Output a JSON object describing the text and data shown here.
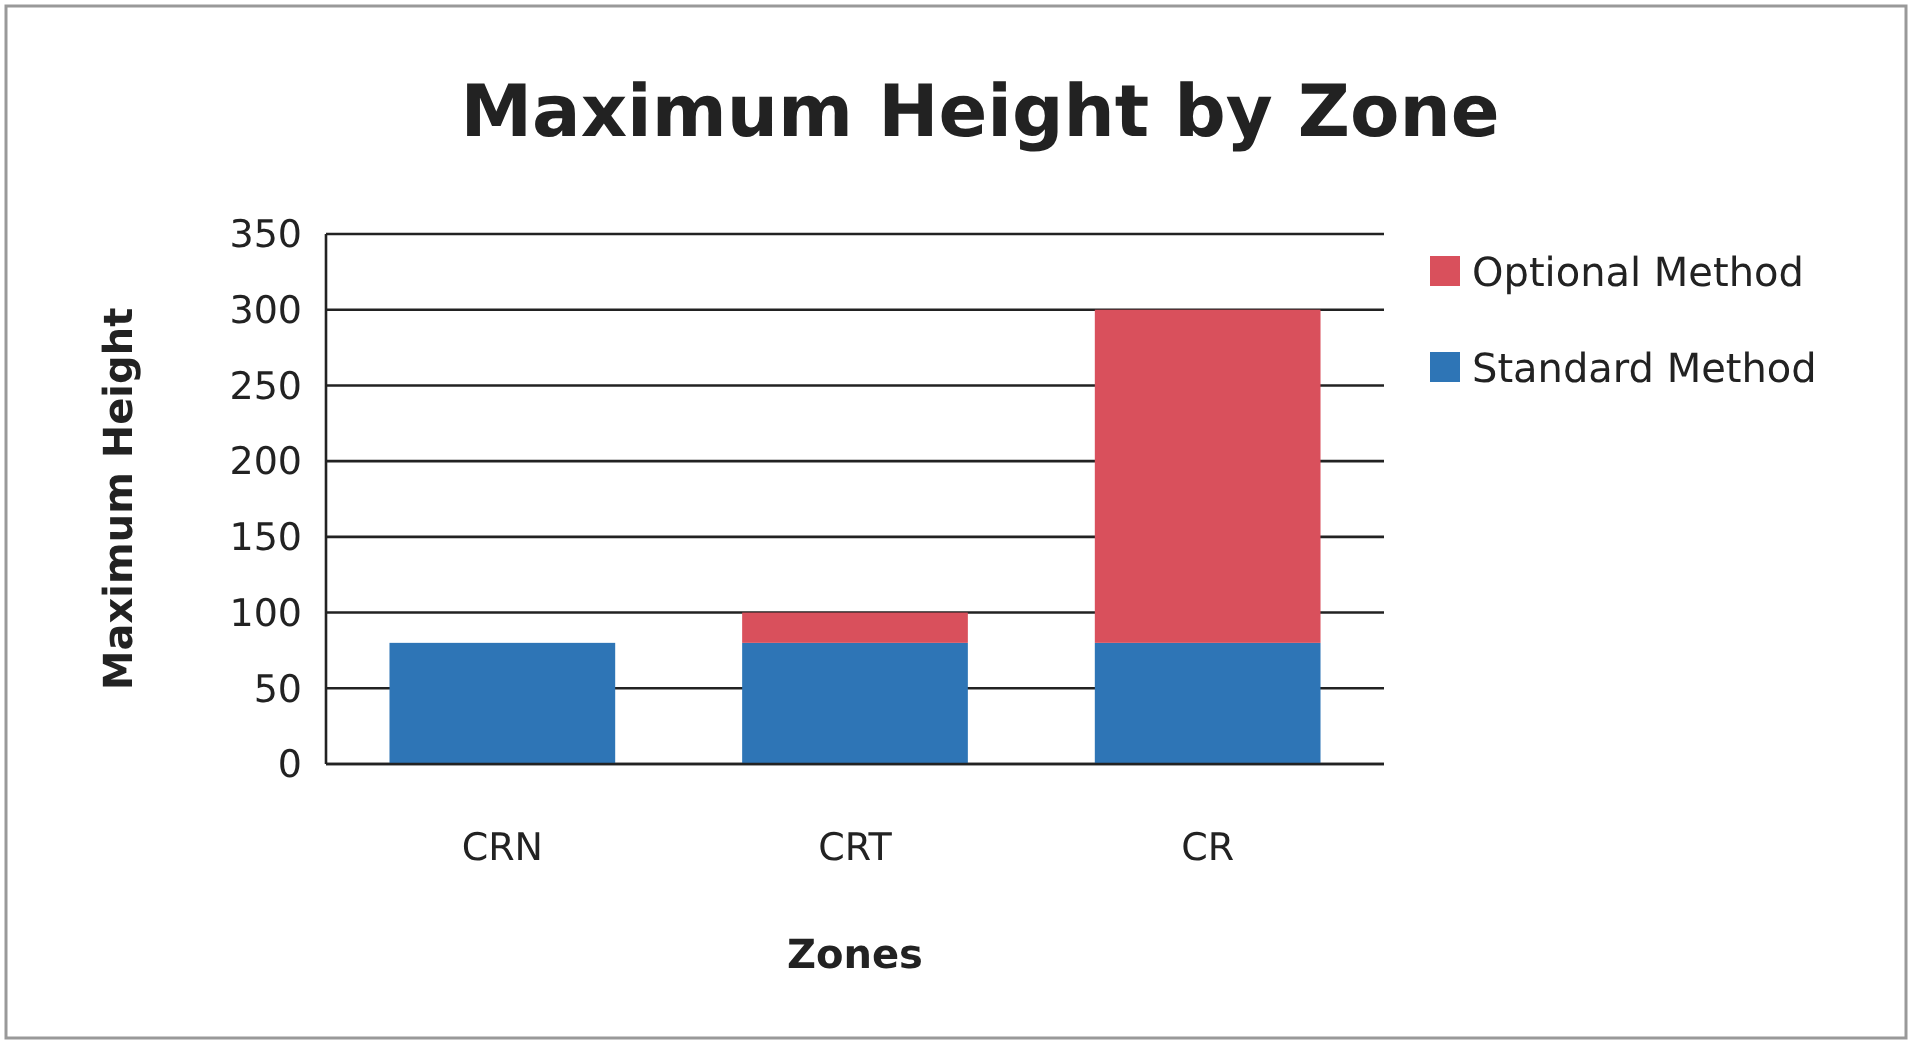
{
  "chart_data": {
    "type": "bar",
    "title": "Maximum Height by Zone",
    "xlabel": "Zones",
    "ylabel": "Maximum Height",
    "categories": [
      "CRN",
      "CRT",
      "CR"
    ],
    "series": [
      {
        "name": "Standard Method",
        "color": "#2e75b6",
        "values": [
          80,
          80,
          80
        ]
      },
      {
        "name": "Optional Method",
        "color": "#d9505c",
        "values": [
          null,
          20,
          220
        ]
      }
    ],
    "stacked": true,
    "ylim": [
      0,
      350
    ],
    "yticks": [
      0,
      50,
      100,
      150,
      200,
      250,
      300,
      350
    ],
    "grid": "y",
    "legend": "right"
  }
}
